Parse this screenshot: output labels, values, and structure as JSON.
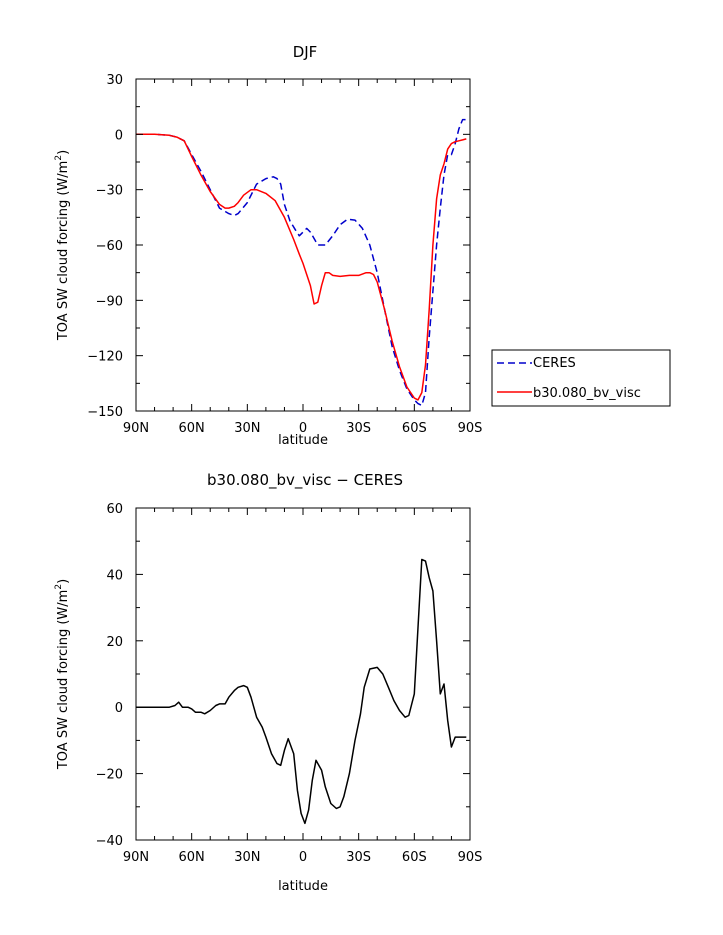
{
  "chart_data": [
    {
      "type": "line",
      "title": "DJF",
      "xlabel": "latitude",
      "ylabel": "TOA SW cloud forcing (W/m²)",
      "ylabel_prefix": "TOA SW cloud forcing (W/m",
      "ylabel_sup": "2",
      "ylabel_suffix": ")",
      "xlim": [
        90,
        -90
      ],
      "ylim": [
        -150,
        30
      ],
      "xticks": [
        90,
        60,
        30,
        0,
        -30,
        -60,
        -90
      ],
      "xtick_labels": [
        "90N",
        "60N",
        "30N",
        "0",
        "30S",
        "60S",
        "90S"
      ],
      "yticks": [
        30,
        0,
        -30,
        -60,
        -90,
        -120,
        -150
      ],
      "ytick_labels": [
        "30",
        "0",
        "−30",
        "−60",
        "−90",
        "−120",
        "−150"
      ],
      "legend_position": "right, outside the plot",
      "series": [
        {
          "name": "CERES",
          "color": "#0000cc",
          "dash": "dashed",
          "x": [
            90,
            80,
            72,
            68,
            64,
            60,
            55,
            50,
            45,
            40,
            37,
            35,
            30,
            25,
            20,
            16,
            14,
            12,
            10,
            7,
            4,
            2,
            0,
            -2,
            -4,
            -8,
            -12,
            -16,
            -20,
            -24,
            -28,
            -32,
            -36,
            -40,
            -44,
            -48,
            -52,
            -56,
            -60,
            -62,
            -64,
            -66,
            -68,
            -70,
            -72,
            -74,
            -76,
            -78,
            -80,
            -82,
            -84,
            -86,
            -88
          ],
          "y": [
            0,
            0,
            -0.5,
            -1.5,
            -3.5,
            -11,
            -20,
            -30,
            -40,
            -43,
            -44,
            -43,
            -37,
            -27,
            -24,
            -23,
            -24,
            -27,
            -38,
            -47,
            -52,
            -55,
            -53,
            -51,
            -53,
            -60,
            -60,
            -55,
            -49,
            -46,
            -46.5,
            -51,
            -60,
            -75,
            -95,
            -115,
            -128,
            -138,
            -144,
            -146,
            -147,
            -140,
            -110,
            -85,
            -60,
            -40,
            -22,
            -11,
            -11,
            -5,
            3,
            8,
            8
          ]
        },
        {
          "name": "b30.080_bv_visc",
          "color": "#ff0000",
          "dash": "solid",
          "x": [
            90,
            80,
            72,
            68,
            64,
            60,
            55,
            50,
            45,
            42,
            40,
            37,
            35,
            32,
            28,
            25,
            20,
            15,
            10,
            5,
            2,
            0,
            -2,
            -4,
            -6,
            -8,
            -10,
            -12,
            -14,
            -16,
            -20,
            -25,
            -30,
            -34,
            -36,
            -38,
            -40,
            -44,
            -48,
            -52,
            -56,
            -60,
            -62,
            -64,
            -66,
            -68,
            -70,
            -72,
            -74,
            -76,
            -78,
            -80,
            -82,
            -84,
            -86,
            -88
          ],
          "y": [
            0,
            0,
            -0.5,
            -1.5,
            -3.5,
            -12,
            -22,
            -31,
            -38,
            -40,
            -40,
            -39,
            -37,
            -33,
            -30,
            -30,
            -32,
            -36,
            -45,
            -57,
            -65,
            -70,
            -76,
            -82,
            -92,
            -91,
            -82,
            -75,
            -75,
            -76.5,
            -77,
            -76.5,
            -76.5,
            -75,
            -75,
            -76,
            -80,
            -95,
            -112,
            -126,
            -137,
            -143,
            -144,
            -140,
            -125,
            -95,
            -60,
            -35,
            -22,
            -16,
            -8,
            -5,
            -4,
            -3.5,
            -3,
            -2.5
          ]
        }
      ]
    },
    {
      "type": "line",
      "title": "b30.080_bv_visc − CERES",
      "xlabel": "latitude",
      "ylabel": "TOA SW cloud forcing (W/m²)",
      "ylabel_prefix": "TOA SW cloud forcing (W/m",
      "ylabel_sup": "2",
      "ylabel_suffix": ")",
      "xlim": [
        90,
        -90
      ],
      "ylim": [
        -40,
        60
      ],
      "xticks": [
        90,
        60,
        30,
        0,
        -30,
        -60,
        -90
      ],
      "xtick_labels": [
        "90N",
        "60N",
        "30N",
        "0",
        "30S",
        "60S",
        "90S"
      ],
      "yticks": [
        60,
        40,
        20,
        0,
        -20,
        -40
      ],
      "ytick_labels": [
        "60",
        "40",
        "20",
        "0",
        "−20",
        "−40"
      ],
      "series": [
        {
          "color": "#000000",
          "dash": "solid",
          "x": [
            90,
            85,
            80,
            75,
            72,
            69,
            67,
            65,
            62,
            60,
            58,
            55,
            53,
            50,
            47,
            45,
            42,
            40,
            37,
            35,
            32,
            30,
            28,
            25,
            22,
            20,
            17,
            14,
            12,
            10,
            8,
            5,
            3,
            1,
            -1,
            -3,
            -5,
            -7,
            -10,
            -12,
            -15,
            -18,
            -20,
            -22,
            -25,
            -28,
            -31,
            -33,
            -36,
            -40,
            -43,
            -46,
            -49,
            -52,
            -55,
            -57,
            -60,
            -62,
            -64,
            -66,
            -68,
            -70,
            -72,
            -74,
            -76,
            -78,
            -80,
            -82,
            -84,
            -86,
            -88
          ],
          "y": [
            0,
            0,
            0,
            0,
            0,
            0.5,
            1.5,
            0,
            0,
            -0.5,
            -1.5,
            -1.5,
            -2,
            -1,
            0.5,
            1,
            1,
            3,
            5,
            6,
            6.5,
            6,
            3,
            -3,
            -6,
            -9,
            -14,
            -17,
            -17.5,
            -13,
            -9.5,
            -14,
            -25,
            -32,
            -35,
            -31,
            -22,
            -16,
            -19,
            -24,
            -29,
            -30.5,
            -30,
            -27,
            -20,
            -10,
            -2,
            6,
            11.5,
            12,
            10,
            6,
            2,
            -1,
            -3,
            -2.5,
            4,
            24,
            44.5,
            44,
            39,
            35,
            20,
            4,
            7,
            -4,
            -12,
            -9,
            -9,
            -9,
            -9
          ]
        }
      ]
    }
  ]
}
